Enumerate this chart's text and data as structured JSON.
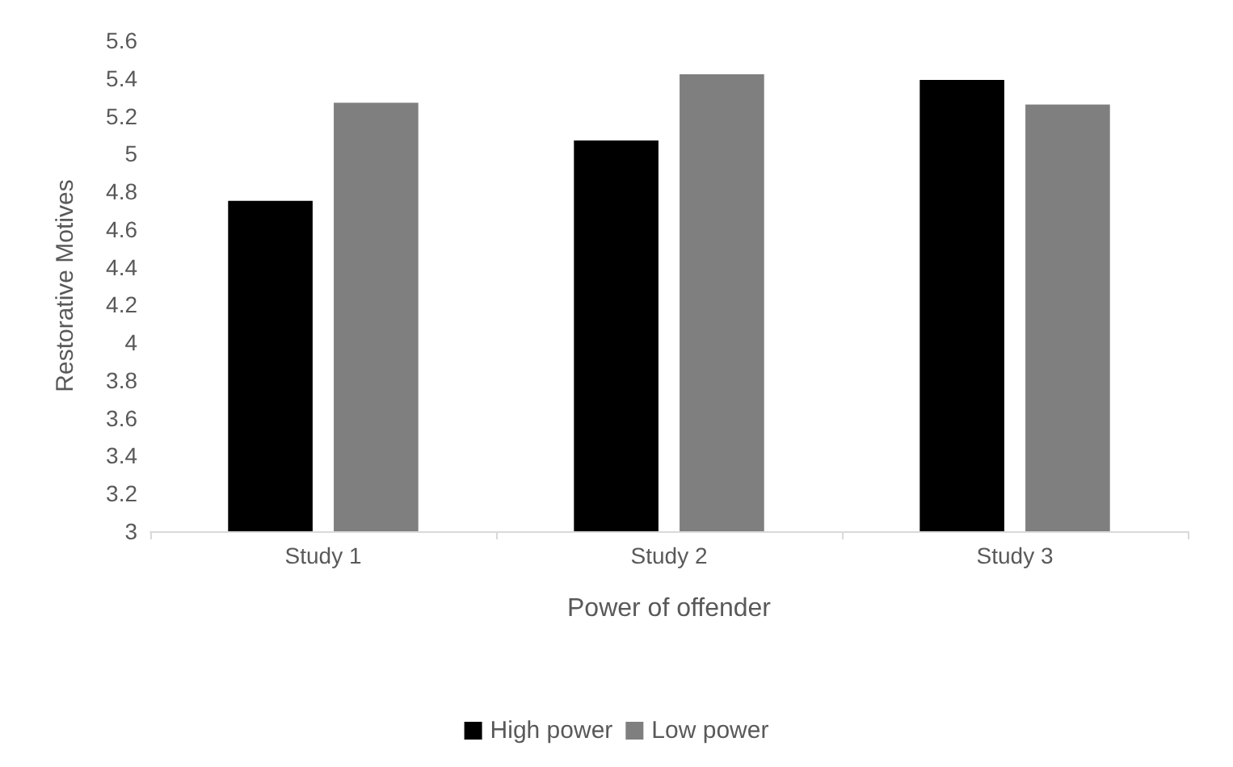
{
  "chart_data": {
    "type": "bar",
    "xlabel": "Power of offender",
    "ylabel": "Restorative Motives",
    "categories": [
      "Study 1",
      "Study 2",
      "Study 3"
    ],
    "series": [
      {
        "name": "High power",
        "color": "#000000",
        "values": [
          4.75,
          5.07,
          5.39
        ]
      },
      {
        "name": "Low power",
        "color": "#7f7f7f",
        "values": [
          5.27,
          5.42,
          5.26
        ]
      }
    ],
    "ylim": [
      3,
      5.6
    ],
    "yticks": [
      3,
      3.2,
      3.4,
      3.6,
      3.8,
      4,
      4.2,
      4.4,
      4.6,
      4.8,
      5,
      5.2,
      5.4,
      5.6
    ],
    "grid": false,
    "legend": "bottom"
  }
}
